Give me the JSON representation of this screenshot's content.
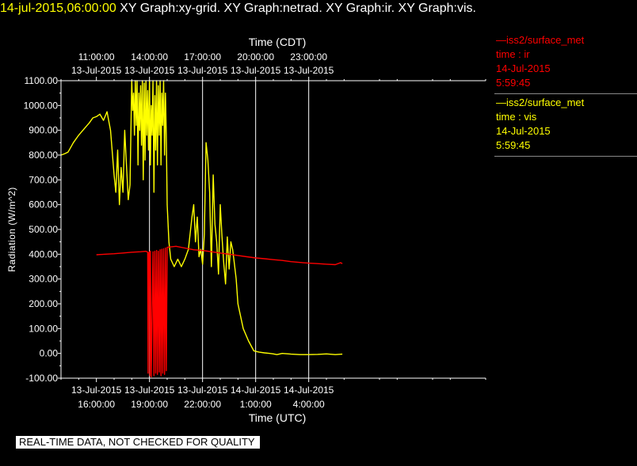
{
  "header": {
    "datetime": "14-jul-2015,06:00:00",
    "plots": "XY Graph:xy-grid.  XY Graph:netrad.  XY Graph:ir.  XY Graph:vis."
  },
  "legend": [
    {
      "line1": "—iss2/surface_met",
      "line2": "time : ir",
      "line3": "14-Jul-2015",
      "line4": "5:59:45",
      "color": "#ff0000"
    },
    {
      "line1": "—iss2/surface_met",
      "line2": "time : vis",
      "line3": "14-Jul-2015",
      "line4": "5:59:45",
      "color": "#ffff00"
    }
  ],
  "disclaimer": "REAL-TIME DATA, NOT CHECKED FOR QUALITY",
  "chart_data": {
    "type": "line",
    "top_axis_title": "Time (CDT)",
    "bottom_axis_title": "Time (UTC)",
    "ylabel": "Radiation (W/m^2)",
    "ylim": [
      -100,
      1100
    ],
    "yticks": [
      "1100.00",
      "1000.00",
      "900.00",
      "800.00",
      "700.00",
      "600.00",
      "500.00",
      "400.00",
      "300.00",
      "200.00",
      "100.00",
      "0.00",
      "-100.00"
    ],
    "xlim_utc_hours": [
      14.0,
      38.0
    ],
    "x_gridlines_utc_hours": [
      19,
      22,
      25,
      28
    ],
    "top_ticks": [
      {
        "utc": 16,
        "l1": "11:00:00",
        "l2": "13-Jul-2015"
      },
      {
        "utc": 19,
        "l1": "14:00:00",
        "l2": "13-Jul-2015"
      },
      {
        "utc": 22,
        "l1": "17:00:00",
        "l2": "13-Jul-2015"
      },
      {
        "utc": 25,
        "l1": "20:00:00",
        "l2": "13-Jul-2015"
      },
      {
        "utc": 28,
        "l1": "23:00:00",
        "l2": "13-Jul-2015"
      }
    ],
    "bottom_ticks": [
      {
        "utc": 16,
        "l1": "13-Jul-2015",
        "l2": "16:00:00"
      },
      {
        "utc": 19,
        "l1": "13-Jul-2015",
        "l2": "19:00:00"
      },
      {
        "utc": 22,
        "l1": "13-Jul-2015",
        "l2": "22:00:00"
      },
      {
        "utc": 25,
        "l1": "14-Jul-2015",
        "l2": "1:00:00"
      },
      {
        "utc": 28,
        "l1": "14-Jul-2015",
        "l2": "4:00:00"
      }
    ],
    "series": [
      {
        "name": "ir",
        "color": "#ff0000",
        "x": [
          16.0,
          16.5,
          17.0,
          17.5,
          18.0,
          18.5,
          18.8,
          18.9,
          18.92,
          18.95,
          19.0,
          19.02,
          19.05,
          19.1,
          19.2,
          19.25,
          19.3,
          19.35,
          19.4,
          19.45,
          19.5,
          19.55,
          19.6,
          19.65,
          19.7,
          19.75,
          19.8,
          19.85,
          19.9,
          19.95,
          20.0,
          20.5,
          21.0,
          21.5,
          22.0,
          22.5,
          23.0,
          23.5,
          24.0,
          24.5,
          25.0,
          25.5,
          26.0,
          26.5,
          27.0,
          27.5,
          28.0,
          28.5,
          29.0,
          29.5,
          29.8,
          29.9
        ],
        "y": [
          398,
          400,
          402,
          405,
          408,
          410,
          412,
          408,
          -80,
          405,
          410,
          -90,
          412,
          -95,
          410,
          -90,
          412,
          -80,
          415,
          -85,
          412,
          -75,
          418,
          -90,
          420,
          -80,
          422,
          -85,
          425,
          -70,
          428,
          432,
          425,
          418,
          415,
          410,
          405,
          400,
          395,
          390,
          385,
          382,
          378,
          375,
          370,
          367,
          364,
          362,
          360,
          358,
          366,
          362
        ]
      },
      {
        "name": "vis",
        "color": "#ffff00",
        "x": [
          14.0,
          14.2,
          14.4,
          14.5,
          14.7,
          15.0,
          15.3,
          15.6,
          15.8,
          16.0,
          16.2,
          16.4,
          16.6,
          16.8,
          17.0,
          17.1,
          17.2,
          17.3,
          17.4,
          17.5,
          17.6,
          17.7,
          17.8,
          17.9,
          18.0,
          18.05,
          18.1,
          18.15,
          18.2,
          18.25,
          18.3,
          18.35,
          18.4,
          18.45,
          18.5,
          18.55,
          18.6,
          18.65,
          18.7,
          18.75,
          18.8,
          18.85,
          18.9,
          18.95,
          19.0,
          19.05,
          19.1,
          19.15,
          19.2,
          19.25,
          19.3,
          19.35,
          19.4,
          19.45,
          19.5,
          19.55,
          19.6,
          19.65,
          19.7,
          19.75,
          19.8,
          19.85,
          19.9,
          19.95,
          20.0,
          20.1,
          20.2,
          20.4,
          20.6,
          20.8,
          21.0,
          21.2,
          21.4,
          21.5,
          21.6,
          21.7,
          21.8,
          21.9,
          22.0,
          22.1,
          22.2,
          22.3,
          22.4,
          22.5,
          22.6,
          22.7,
          22.8,
          22.9,
          23.0,
          23.1,
          23.2,
          23.3,
          23.4,
          23.5,
          23.6,
          23.7,
          23.8,
          23.9,
          24.0,
          24.3,
          24.6,
          24.9,
          25.2,
          25.5,
          25.8,
          26.0,
          26.2,
          26.5,
          27.0,
          27.5,
          28.0,
          28.5,
          29.0,
          29.5,
          29.9
        ],
        "y": [
          800,
          805,
          812,
          825,
          850,
          880,
          905,
          930,
          950,
          955,
          965,
          940,
          975,
          900,
          720,
          650,
          820,
          600,
          750,
          650,
          900,
          760,
          620,
          680,
          1100,
          980,
          1050,
          880,
          1100,
          920,
          1100,
          760,
          1050,
          900,
          1080,
          840,
          1100,
          700,
          1090,
          780,
          1100,
          880,
          1060,
          820,
          1100,
          760,
          1000,
          880,
          1100,
          650,
          1040,
          820,
          1100,
          760,
          1080,
          880,
          1100,
          760,
          1050,
          920,
          1100,
          800,
          1050,
          880,
          600,
          450,
          380,
          350,
          380,
          350,
          380,
          420,
          550,
          600,
          450,
          550,
          390,
          420,
          360,
          480,
          850,
          780,
          650,
          350,
          720,
          520,
          450,
          320,
          600,
          470,
          360,
          280,
          470,
          340,
          450,
          420,
          360,
          300,
          200,
          100,
          50,
          10,
          5,
          2,
          0,
          -2,
          -5,
          0,
          -3,
          -5,
          -5,
          -4,
          -2,
          -5,
          -3
        ]
      }
    ]
  }
}
